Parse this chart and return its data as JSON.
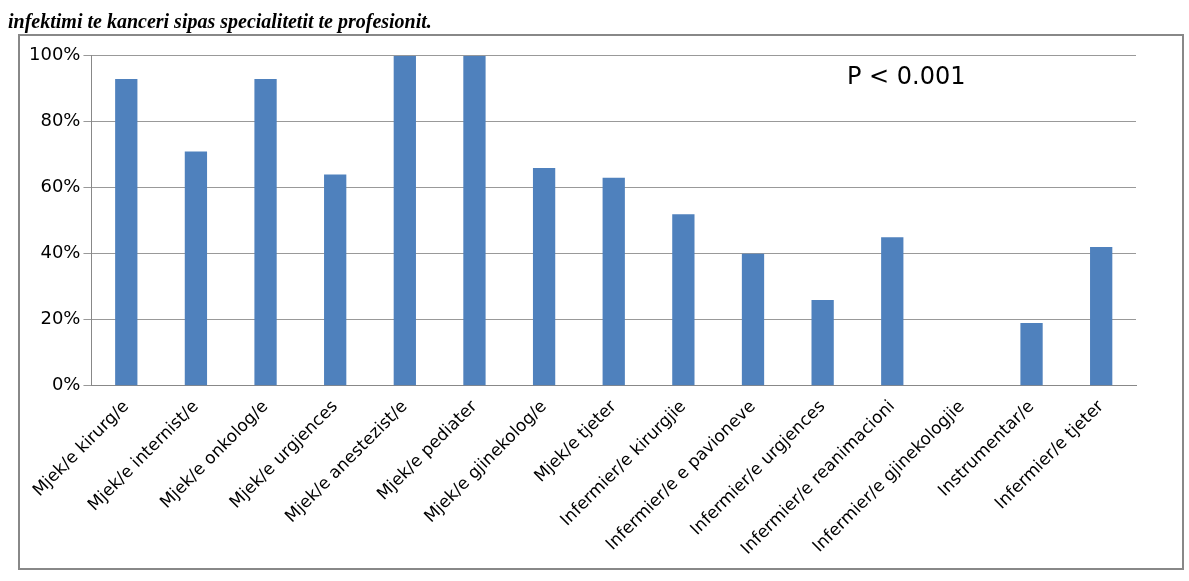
{
  "chart_data": {
    "type": "bar",
    "title": "infektimi te kanceri sipas specialitetit te profesionit.",
    "categories": [
      "Mjek/e kirurg/e",
      "Mjek/e internist/e",
      "Mjek/e onkolog/e",
      "Mjek/e urgjences",
      "Mjek/e anestezist/e",
      "Mjek/e pediater",
      "Mjek/e gjinekolog/e",
      "Mjek/e tjeter",
      "Infermier/e kirurgjie",
      "Infermier/e e pavioneve",
      "Infermier/e urgjences",
      "Infermier/e reanimacioni",
      "Infermier/e gjinekologjie",
      "Instrumentar/e",
      "Infermier/e tjeter"
    ],
    "values": [
      93,
      71,
      93,
      64,
      100,
      100,
      66,
      63,
      52,
      40,
      26,
      45,
      0,
      19,
      42
    ],
    "color": "#4f81bd",
    "ylim": [
      0,
      100
    ],
    "yticks": [
      {
        "value": 0,
        "label": "0%"
      },
      {
        "value": 20,
        "label": "20%"
      },
      {
        "value": 40,
        "label": "40%"
      },
      {
        "value": 60,
        "label": "60%"
      },
      {
        "value": 80,
        "label": "80%"
      },
      {
        "value": 100,
        "label": "100%"
      }
    ],
    "grid": "y",
    "annotations": [
      "P < 0.001"
    ]
  }
}
